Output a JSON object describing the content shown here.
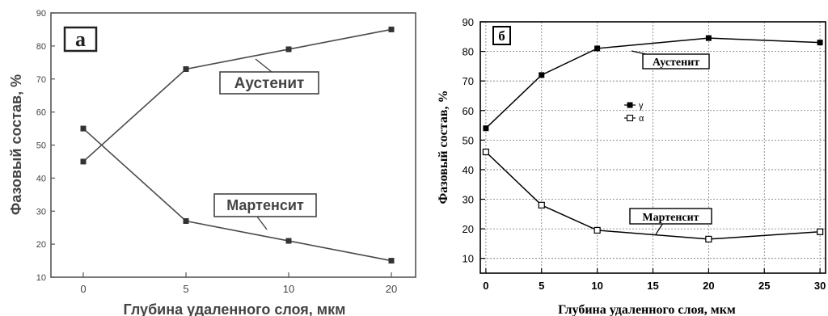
{
  "chart_data": [
    {
      "type": "line",
      "panel_label": "а",
      "xlabel": "Глубина удаленного слоя, мкм",
      "ylabel": "Фазовый состав, %",
      "x_ticks": [
        "0",
        "5",
        "10",
        "20"
      ],
      "y_ticks": [
        10,
        20,
        30,
        40,
        50,
        60,
        70,
        80,
        90
      ],
      "ylim": [
        10,
        90
      ],
      "x_scale": "categorical (equally spaced positions for 0, 5, 10, 20)",
      "grid": false,
      "series": [
        {
          "label": "Аустенит",
          "x": [
            0,
            5,
            10,
            20
          ],
          "values": [
            45,
            73,
            79,
            85
          ],
          "marker": "filled-square"
        },
        {
          "label": "Мартенсит",
          "x": [
            0,
            5,
            10,
            20
          ],
          "values": [
            55,
            27,
            21,
            15
          ],
          "marker": "filled-square"
        }
      ]
    },
    {
      "type": "line",
      "panel_label": "б",
      "xlabel": "Глубина удаленного слоя, мкм",
      "ylabel": "Фазовый состав, %",
      "x_ticks": [
        0,
        5,
        10,
        15,
        20,
        25,
        30
      ],
      "y_ticks": [
        10,
        20,
        30,
        40,
        50,
        60,
        70,
        80,
        90
      ],
      "xlim": [
        -0.5,
        30.5
      ],
      "ylim": [
        5,
        90
      ],
      "grid": true,
      "legend": {
        "placement": "center-left",
        "entries": [
          "γ",
          "α"
        ]
      },
      "series": [
        {
          "label": "Аустенит",
          "legend": "γ",
          "x": [
            0,
            5,
            10,
            20,
            30
          ],
          "values": [
            54,
            72,
            81,
            84.5,
            83
          ],
          "marker": "filled-square"
        },
        {
          "label": "Мартенсит",
          "legend": "α",
          "x": [
            0,
            5,
            10,
            20,
            30
          ],
          "values": [
            46,
            28,
            19.5,
            16.5,
            19
          ],
          "marker": "open-square"
        }
      ]
    }
  ]
}
